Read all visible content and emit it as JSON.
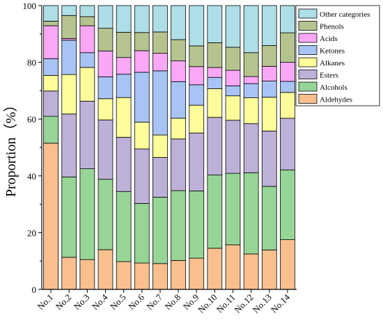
{
  "chart_data": {
    "type": "bar",
    "stacked": true,
    "title": "",
    "xlabel": "",
    "ylabel": "Proportion（%）",
    "ylim": [
      0,
      100
    ],
    "yticks": [
      0,
      20,
      40,
      60,
      80,
      100
    ],
    "grid": false,
    "legend_position": "top-right",
    "categories": [
      "No.1",
      "No.2",
      "No.3",
      "No.4",
      "No.5",
      "No.6",
      "No.7",
      "No.8",
      "No.9",
      "No.10",
      "No.11",
      "No.12",
      "No.13",
      "No.14"
    ],
    "series": [
      {
        "name": "Aldehydes",
        "color": "#F9C08E",
        "values": [
          51.5,
          11.3,
          10.5,
          14.0,
          9.8,
          9.3,
          9.1,
          10.2,
          11.0,
          14.5,
          15.7,
          12.5,
          13.9,
          17.5
        ]
      },
      {
        "name": "Alcohols",
        "color": "#96D596",
        "values": [
          9.5,
          28.3,
          32.0,
          24.8,
          24.7,
          21.0,
          23.4,
          24.6,
          23.7,
          25.8,
          25.2,
          28.6,
          22.4,
          24.6
        ]
      },
      {
        "name": "Esters",
        "color": "#BDB1D8",
        "values": [
          8.9,
          22.2,
          23.8,
          20.9,
          19.1,
          19.2,
          14.0,
          18.2,
          20.4,
          20.3,
          18.7,
          17.3,
          19.5,
          18.2
        ]
      },
      {
        "name": "Alkanes",
        "color": "#FDFC9A",
        "values": [
          5.5,
          13.9,
          11.9,
          7.5,
          14.0,
          9.4,
          7.9,
          7.3,
          9.8,
          10.1,
          8.6,
          9.1,
          11.9,
          9.1
        ]
      },
      {
        "name": "Ketones",
        "color": "#A8C4F5",
        "values": [
          5.9,
          12.1,
          5.2,
          7.7,
          8.2,
          17.6,
          22.6,
          12.9,
          7.2,
          4.0,
          3.5,
          5.0,
          5.7,
          3.9
        ]
      },
      {
        "name": "Acids",
        "color": "#FAA7F5",
        "values": [
          11.6,
          0.6,
          9.5,
          9.1,
          5.9,
          7.6,
          6.2,
          7.3,
          6.4,
          3.5,
          5.5,
          2.5,
          5.2,
          6.7
        ]
      },
      {
        "name": "Phenols",
        "color": "#B5C48F",
        "values": [
          1.6,
          8.1,
          3.2,
          8.0,
          8.9,
          6.4,
          7.5,
          7.5,
          7.3,
          8.7,
          8.1,
          8.4,
          7.3,
          10.4
        ]
      },
      {
        "name": "Other categories",
        "color": "#AEDEE6",
        "values": [
          5.5,
          3.5,
          3.9,
          8.0,
          9.4,
          9.5,
          9.3,
          12.0,
          14.2,
          13.1,
          14.7,
          16.6,
          14.1,
          9.6
        ]
      }
    ]
  }
}
